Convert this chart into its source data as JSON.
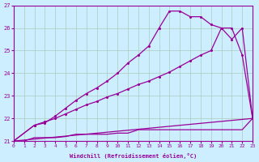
{
  "xlabel": "Windchill (Refroidissement éolien,°C)",
  "bg_color": "#cceeff",
  "line_color": "#990099",
  "grid_color": "#aaccbb",
  "xlim": [
    0,
    23
  ],
  "ylim": [
    21,
    27
  ],
  "yticks": [
    21,
    22,
    23,
    24,
    25,
    26,
    27
  ],
  "xticks": [
    0,
    1,
    2,
    3,
    4,
    5,
    6,
    7,
    8,
    9,
    10,
    11,
    12,
    13,
    14,
    15,
    16,
    17,
    18,
    19,
    20,
    21,
    22,
    23
  ],
  "line1_x": [
    0,
    1,
    2,
    3,
    4,
    5,
    6,
    7,
    8,
    9,
    10,
    11,
    12,
    13,
    14,
    15,
    16,
    17,
    18,
    19,
    20,
    21,
    22,
    23
  ],
  "line1_y": [
    21.0,
    21.0,
    21.15,
    21.15,
    21.15,
    21.2,
    21.3,
    21.3,
    21.3,
    21.3,
    21.35,
    21.35,
    21.5,
    21.5,
    21.5,
    21.5,
    21.5,
    21.5,
    21.5,
    21.5,
    21.5,
    21.5,
    21.5,
    22.0
  ],
  "line2_x": [
    0,
    23
  ],
  "line2_y": [
    21.0,
    22.0
  ],
  "line3_x": [
    0,
    2,
    3,
    4,
    5,
    6,
    7,
    8,
    9,
    10,
    11,
    12,
    13,
    14,
    15,
    16,
    17,
    18,
    19,
    20,
    21,
    22,
    23
  ],
  "line3_y": [
    21.0,
    21.7,
    21.85,
    22.0,
    22.2,
    22.4,
    22.6,
    22.75,
    22.95,
    23.1,
    23.3,
    23.5,
    23.65,
    23.85,
    24.05,
    24.3,
    24.55,
    24.8,
    25.0,
    26.0,
    26.0,
    24.8,
    22.0
  ],
  "line4_x": [
    0,
    2,
    3,
    4,
    5,
    6,
    7,
    8,
    9,
    10,
    11,
    12,
    13,
    14,
    15,
    16,
    17,
    18,
    19,
    20,
    21,
    22,
    23
  ],
  "line4_y": [
    21.0,
    21.7,
    21.8,
    22.1,
    22.45,
    22.8,
    23.1,
    23.35,
    23.65,
    24.0,
    24.45,
    24.8,
    25.2,
    26.0,
    26.75,
    26.75,
    26.5,
    26.5,
    26.15,
    26.0,
    25.5,
    26.0,
    22.0
  ]
}
